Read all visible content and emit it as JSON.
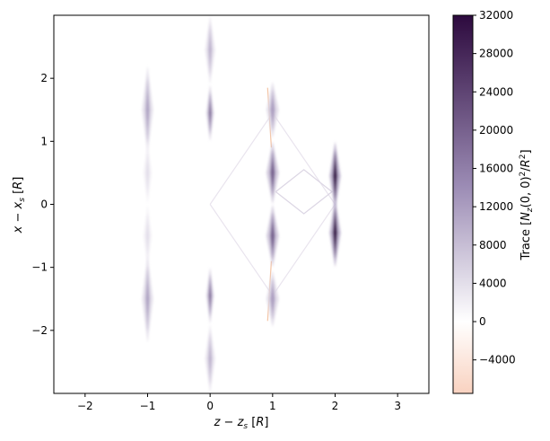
{
  "chart_data": {
    "type": "heatmap",
    "xlabel": "z − z_s [R]",
    "ylabel": "x − x_s [R]",
    "xlim": [
      -2.5,
      3.5
    ],
    "ylim": [
      -3,
      3
    ],
    "xticks": [
      -2,
      -1,
      0,
      1,
      2,
      3
    ],
    "yticks": [
      -2,
      -1,
      0,
      1,
      2
    ],
    "xtick_labels": [
      "−2",
      "−1",
      "0",
      "1",
      "2",
      "3"
    ],
    "ytick_labels": [
      "−2",
      "−1",
      "0",
      "1",
      "2"
    ],
    "colorbar": {
      "label": "Trace [N_z(0,0)²/R²]",
      "min": -7500,
      "max": 32000,
      "ticks": [
        -4000,
        0,
        4000,
        8000,
        12000,
        16000,
        20000,
        24000,
        28000,
        32000
      ],
      "tick_labels": [
        "−4000",
        "0",
        "4000",
        "8000",
        "12000",
        "16000",
        "20000",
        "24000",
        "28000",
        "32000"
      ],
      "colors": {
        "low": "#f9d2c0",
        "zero": "#ffffff",
        "mid": "#9b8bb4",
        "high": "#2d0a3e"
      }
    },
    "features": [
      {
        "x": -1,
        "y": 1.5,
        "half_height": 0.7,
        "half_width": 0.09,
        "peak": 13000
      },
      {
        "x": -1,
        "y": 0.5,
        "half_height": 0.5,
        "half_width": 0.07,
        "peak": 5000
      },
      {
        "x": -1,
        "y": -0.5,
        "half_height": 0.5,
        "half_width": 0.07,
        "peak": 5000
      },
      {
        "x": -1,
        "y": -1.5,
        "half_height": 0.7,
        "half_width": 0.09,
        "peak": 13000
      },
      {
        "x": 0,
        "y": 2.45,
        "half_height": 0.55,
        "half_width": 0.08,
        "peak": 11000
      },
      {
        "x": 0,
        "y": 1.45,
        "half_height": 0.45,
        "half_width": 0.06,
        "peak": 21000
      },
      {
        "x": 0,
        "y": -1.45,
        "half_height": 0.45,
        "half_width": 0.06,
        "peak": 21000
      },
      {
        "x": 0,
        "y": -2.45,
        "half_height": 0.55,
        "half_width": 0.08,
        "peak": 11000
      },
      {
        "x": 1,
        "y": 1.5,
        "half_height": 0.45,
        "half_width": 0.1,
        "peak": 14000
      },
      {
        "x": 1,
        "y": 0.5,
        "half_height": 0.5,
        "half_width": 0.1,
        "peak": 22000
      },
      {
        "x": 1,
        "y": -0.5,
        "half_height": 0.5,
        "half_width": 0.1,
        "peak": 22000
      },
      {
        "x": 1,
        "y": -1.5,
        "half_height": 0.45,
        "half_width": 0.1,
        "peak": 14000
      },
      {
        "x": 2,
        "y": 0.45,
        "half_height": 0.55,
        "half_width": 0.09,
        "peak": 32000
      },
      {
        "x": 2,
        "y": -0.45,
        "half_height": 0.55,
        "half_width": 0.09,
        "peak": 32000
      }
    ]
  }
}
